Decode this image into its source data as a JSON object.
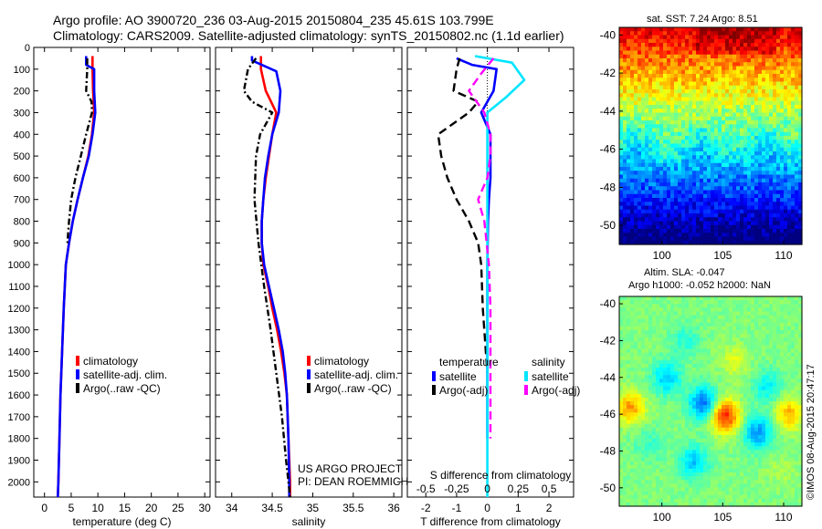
{
  "header": {
    "line1": "Argo profile: AO 3900720_236 03-Aug-2015 20150804_235 45.61S 103.799E",
    "line2": "Climatology: CARS2009. Satellite-adjusted climatology: synTS_20150802.nc (1.1d earlier)"
  },
  "credits": {
    "project": "US ARGO PROJECT",
    "pi": "PI: DEAN ROEMMICH",
    "stamp": "©IMOS 08-Aug-2015 20:47:17"
  },
  "colors": {
    "climatology": "#ff0000",
    "satellite": "#0000ff",
    "argo": "#000000",
    "satellite_diff": "#00e5ff",
    "argo_sal_diff": "#ff00ff"
  },
  "chart_data": [
    {
      "id": "temperature",
      "type": "line",
      "xlabel": "temperature (deg C)",
      "xlim": [
        -2,
        31
      ],
      "xticks": [
        0,
        5,
        10,
        15,
        20,
        25,
        30
      ],
      "xtick_labels": [
        "0",
        "5",
        "10",
        "15",
        "20",
        "25",
        "30"
      ],
      "ylim": [
        0,
        2070
      ],
      "yticks": [
        0,
        100,
        200,
        300,
        400,
        500,
        600,
        700,
        800,
        900,
        1000,
        1100,
        1200,
        1300,
        1400,
        1500,
        1600,
        1700,
        1800,
        1900,
        2000
      ],
      "legend": [
        "climatology",
        "satellite-adj. clim.",
        "Argo(..raw -QC)"
      ],
      "series": [
        {
          "name": "climatology",
          "color": "#ff0000",
          "style": "solid",
          "points": [
            [
              9.0,
              40
            ],
            [
              9.0,
              100
            ],
            [
              9.1,
              200
            ],
            [
              9.3,
              300
            ],
            [
              8.9,
              400
            ],
            [
              8.2,
              500
            ],
            [
              7.2,
              600
            ],
            [
              6.2,
              700
            ],
            [
              5.3,
              800
            ],
            [
              4.6,
              900
            ],
            [
              4.0,
              1000
            ],
            [
              3.6,
              1200
            ],
            [
              3.3,
              1400
            ],
            [
              3.0,
              1600
            ],
            [
              2.8,
              1800
            ],
            [
              2.6,
              2000
            ],
            [
              2.5,
              2070
            ]
          ]
        },
        {
          "name": "satellite-adj. clim.",
          "color": "#0000ff",
          "style": "solid",
          "points": [
            [
              7.8,
              40
            ],
            [
              7.8,
              80
            ],
            [
              9.3,
              100
            ],
            [
              9.3,
              200
            ],
            [
              9.5,
              300
            ],
            [
              9.0,
              400
            ],
            [
              8.3,
              500
            ],
            [
              7.2,
              600
            ],
            [
              6.2,
              700
            ],
            [
              5.3,
              800
            ],
            [
              4.6,
              900
            ],
            [
              4.0,
              1000
            ],
            [
              3.6,
              1200
            ],
            [
              3.3,
              1400
            ],
            [
              3.0,
              1600
            ],
            [
              2.8,
              1800
            ],
            [
              2.6,
              2000
            ],
            [
              2.5,
              2070
            ]
          ]
        },
        {
          "name": "Argo(..raw -QC)",
          "color": "#000000",
          "style": "dashdot",
          "points": [
            [
              8.0,
              50
            ],
            [
              8.0,
              100
            ],
            [
              7.8,
              200
            ],
            [
              8.8,
              250
            ],
            [
              8.9,
              300
            ],
            [
              7.8,
              400
            ],
            [
              6.8,
              500
            ],
            [
              5.8,
              600
            ],
            [
              5.0,
              700
            ],
            [
              4.6,
              800
            ],
            [
              4.3,
              900
            ]
          ]
        }
      ]
    },
    {
      "id": "salinity",
      "type": "line",
      "xlabel": "salinity",
      "xlim": [
        33.8,
        36.1
      ],
      "xticks": [
        34,
        34.5,
        35,
        35.5,
        36
      ],
      "xtick_labels": [
        "34",
        "34.5",
        "35",
        "35.5",
        "36"
      ],
      "ylim": [
        0,
        2070
      ],
      "legend": [
        "climatology",
        "satellite-adj. clim.",
        "Argo(..raw -QC)"
      ],
      "series": [
        {
          "name": "climatology",
          "color": "#ff0000",
          "style": "solid",
          "points": [
            [
              34.36,
              40
            ],
            [
              34.36,
              100
            ],
            [
              34.42,
              200
            ],
            [
              34.55,
              300
            ],
            [
              34.5,
              400
            ],
            [
              34.46,
              500
            ],
            [
              34.42,
              600
            ],
            [
              34.39,
              700
            ],
            [
              34.37,
              800
            ],
            [
              34.37,
              900
            ],
            [
              34.39,
              1000
            ],
            [
              34.45,
              1100
            ],
            [
              34.5,
              1200
            ],
            [
              34.56,
              1300
            ],
            [
              34.61,
              1400
            ],
            [
              34.65,
              1500
            ],
            [
              34.68,
              1600
            ],
            [
              34.7,
              1800
            ],
            [
              34.72,
              2000
            ],
            [
              34.72,
              2070
            ]
          ]
        },
        {
          "name": "satellite-adj. clim.",
          "color": "#0000ff",
          "style": "solid",
          "points": [
            [
              34.25,
              40
            ],
            [
              34.25,
              60
            ],
            [
              34.55,
              110
            ],
            [
              34.6,
              200
            ],
            [
              34.58,
              300
            ],
            [
              34.5,
              400
            ],
            [
              34.45,
              500
            ],
            [
              34.41,
              600
            ],
            [
              34.39,
              700
            ],
            [
              34.37,
              800
            ],
            [
              34.37,
              900
            ],
            [
              34.4,
              1000
            ],
            [
              34.46,
              1100
            ],
            [
              34.52,
              1200
            ],
            [
              34.58,
              1300
            ],
            [
              34.63,
              1400
            ],
            [
              34.66,
              1500
            ],
            [
              34.68,
              1600
            ],
            [
              34.7,
              1800
            ],
            [
              34.71,
              2000
            ],
            [
              34.71,
              2070
            ]
          ]
        },
        {
          "name": "Argo(..raw -QC)",
          "color": "#000000",
          "style": "dashdot",
          "points": [
            [
              34.3,
              50
            ],
            [
              34.2,
              100
            ],
            [
              34.15,
              200
            ],
            [
              34.25,
              250
            ],
            [
              34.5,
              300
            ],
            [
              34.35,
              400
            ],
            [
              34.3,
              500
            ],
            [
              34.28,
              700
            ],
            [
              34.33,
              900
            ],
            [
              34.4,
              1100
            ],
            [
              34.48,
              1300
            ],
            [
              34.55,
              1500
            ],
            [
              34.62,
              1700
            ],
            [
              34.67,
              1900
            ],
            [
              34.7,
              2000
            ],
            [
              34.72,
              2070
            ]
          ]
        }
      ]
    },
    {
      "id": "difference",
      "type": "line",
      "xlabel": "T difference from climatology",
      "top_xlabel": "S difference from climatology",
      "xlim": [
        -2.6,
        2.8
      ],
      "xticks": [
        -2,
        -1,
        0,
        1,
        2
      ],
      "xtick_labels": [
        "-2",
        "-1",
        "0",
        "1",
        "2"
      ],
      "s_ticks": [
        -0.5,
        -0.25,
        0,
        0.25,
        0.5
      ],
      "s_tick_labels": [
        "-0.5",
        "-0.25",
        "0",
        "0.25",
        "0.5"
      ],
      "ylim": [
        0,
        2070
      ],
      "legend": {
        "temperature_title": "temperature",
        "salinity_title": "salinity",
        "temperature_items": [
          "satellite",
          "Argo(-adj)"
        ],
        "salinity_items": [
          "satellite",
          "Argo(-adj)"
        ]
      },
      "series": [
        {
          "name": "temperature satellite",
          "color": "#0000ff",
          "style": "solid",
          "points": [
            [
              -1.0,
              50
            ],
            [
              -0.5,
              80
            ],
            [
              0.3,
              100
            ],
            [
              0.2,
              200
            ],
            [
              -0.2,
              300
            ],
            [
              0.1,
              400
            ],
            [
              0.1,
              500
            ],
            [
              0.1,
              600
            ],
            [
              0.05,
              700
            ],
            [
              0.02,
              800
            ],
            [
              0.0,
              1000
            ],
            [
              0.0,
              1500
            ],
            [
              0.0,
              1800
            ]
          ]
        },
        {
          "name": "temperature Argo(-adj)",
          "color": "#000000",
          "style": "dashed",
          "points": [
            [
              -0.9,
              50
            ],
            [
              -1.0,
              100
            ],
            [
              -1.1,
              200
            ],
            [
              -0.3,
              250
            ],
            [
              -0.6,
              300
            ],
            [
              -1.6,
              400
            ],
            [
              -1.5,
              500
            ],
            [
              -1.3,
              600
            ],
            [
              -1.0,
              700
            ],
            [
              -0.6,
              800
            ],
            [
              -0.3,
              900
            ],
            [
              -0.2,
              1000
            ],
            [
              -0.15,
              1200
            ],
            [
              -0.05,
              1400
            ],
            [
              0.0,
              1500
            ]
          ]
        },
        {
          "name": "salinity satellite",
          "color": "#00e5ff",
          "style": "solid",
          "points": [
            [
              -0.4,
              40
            ],
            [
              0.8,
              70
            ],
            [
              1.2,
              150
            ],
            [
              0.6,
              230
            ],
            [
              0.0,
              300
            ],
            [
              0.0,
              400
            ],
            [
              0.0,
              800
            ],
            [
              0.0,
              1200
            ],
            [
              0.0,
              1600
            ],
            [
              0.0,
              2070
            ]
          ]
        },
        {
          "name": "salinity Argo(-adj)",
          "color": "#ff00ff",
          "style": "dashed",
          "points": [
            [
              0.2,
              50
            ],
            [
              -0.2,
              120
            ],
            [
              -0.6,
              200
            ],
            [
              -0.1,
              300
            ],
            [
              0.1,
              400
            ],
            [
              0.1,
              500
            ],
            [
              0.0,
              600
            ],
            [
              -0.3,
              700
            ],
            [
              -0.1,
              800
            ],
            [
              0.05,
              1000
            ],
            [
              0.1,
              1200
            ],
            [
              0.1,
              1400
            ],
            [
              0.1,
              1800
            ]
          ]
        }
      ]
    }
  ],
  "maps": {
    "sst": {
      "title": "sat. SST: 7.24 Argo: 8.51",
      "yticks": [
        "-40",
        "-42",
        "-44",
        "-46",
        "-48",
        "-50"
      ],
      "xticks": [
        "100",
        "105",
        "110"
      ]
    },
    "sla": {
      "title1": "Altim. SLA: -0.047",
      "title2": "Argo h1000: -0.052 h2000: NaN",
      "yticks": [
        "-40",
        "-42",
        "-44",
        "-46",
        "-48",
        "-50"
      ],
      "xticks": [
        "100",
        "105",
        "110"
      ]
    }
  }
}
